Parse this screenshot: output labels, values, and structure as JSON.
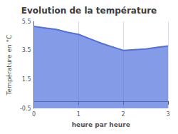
{
  "chart_data": {
    "type": "area",
    "title": "Evolution de la température",
    "xlabel": "heure par heure",
    "ylabel": "Température en °C",
    "x": [
      0,
      0.25,
      0.5,
      0.75,
      1.0,
      1.25,
      1.5,
      1.75,
      2.0,
      2.25,
      2.5,
      2.75,
      3.0
    ],
    "values": [
      5.15,
      5.05,
      4.95,
      4.75,
      4.6,
      4.3,
      4.0,
      3.75,
      3.5,
      3.55,
      3.6,
      3.7,
      3.8
    ],
    "xlim": [
      0,
      3
    ],
    "xticks": [
      0,
      1,
      2,
      3
    ],
    "ylim": [
      -0.5,
      5.5
    ],
    "yticks": [
      -0.5,
      1.5,
      3.5,
      5.5
    ],
    "grid": true
  }
}
